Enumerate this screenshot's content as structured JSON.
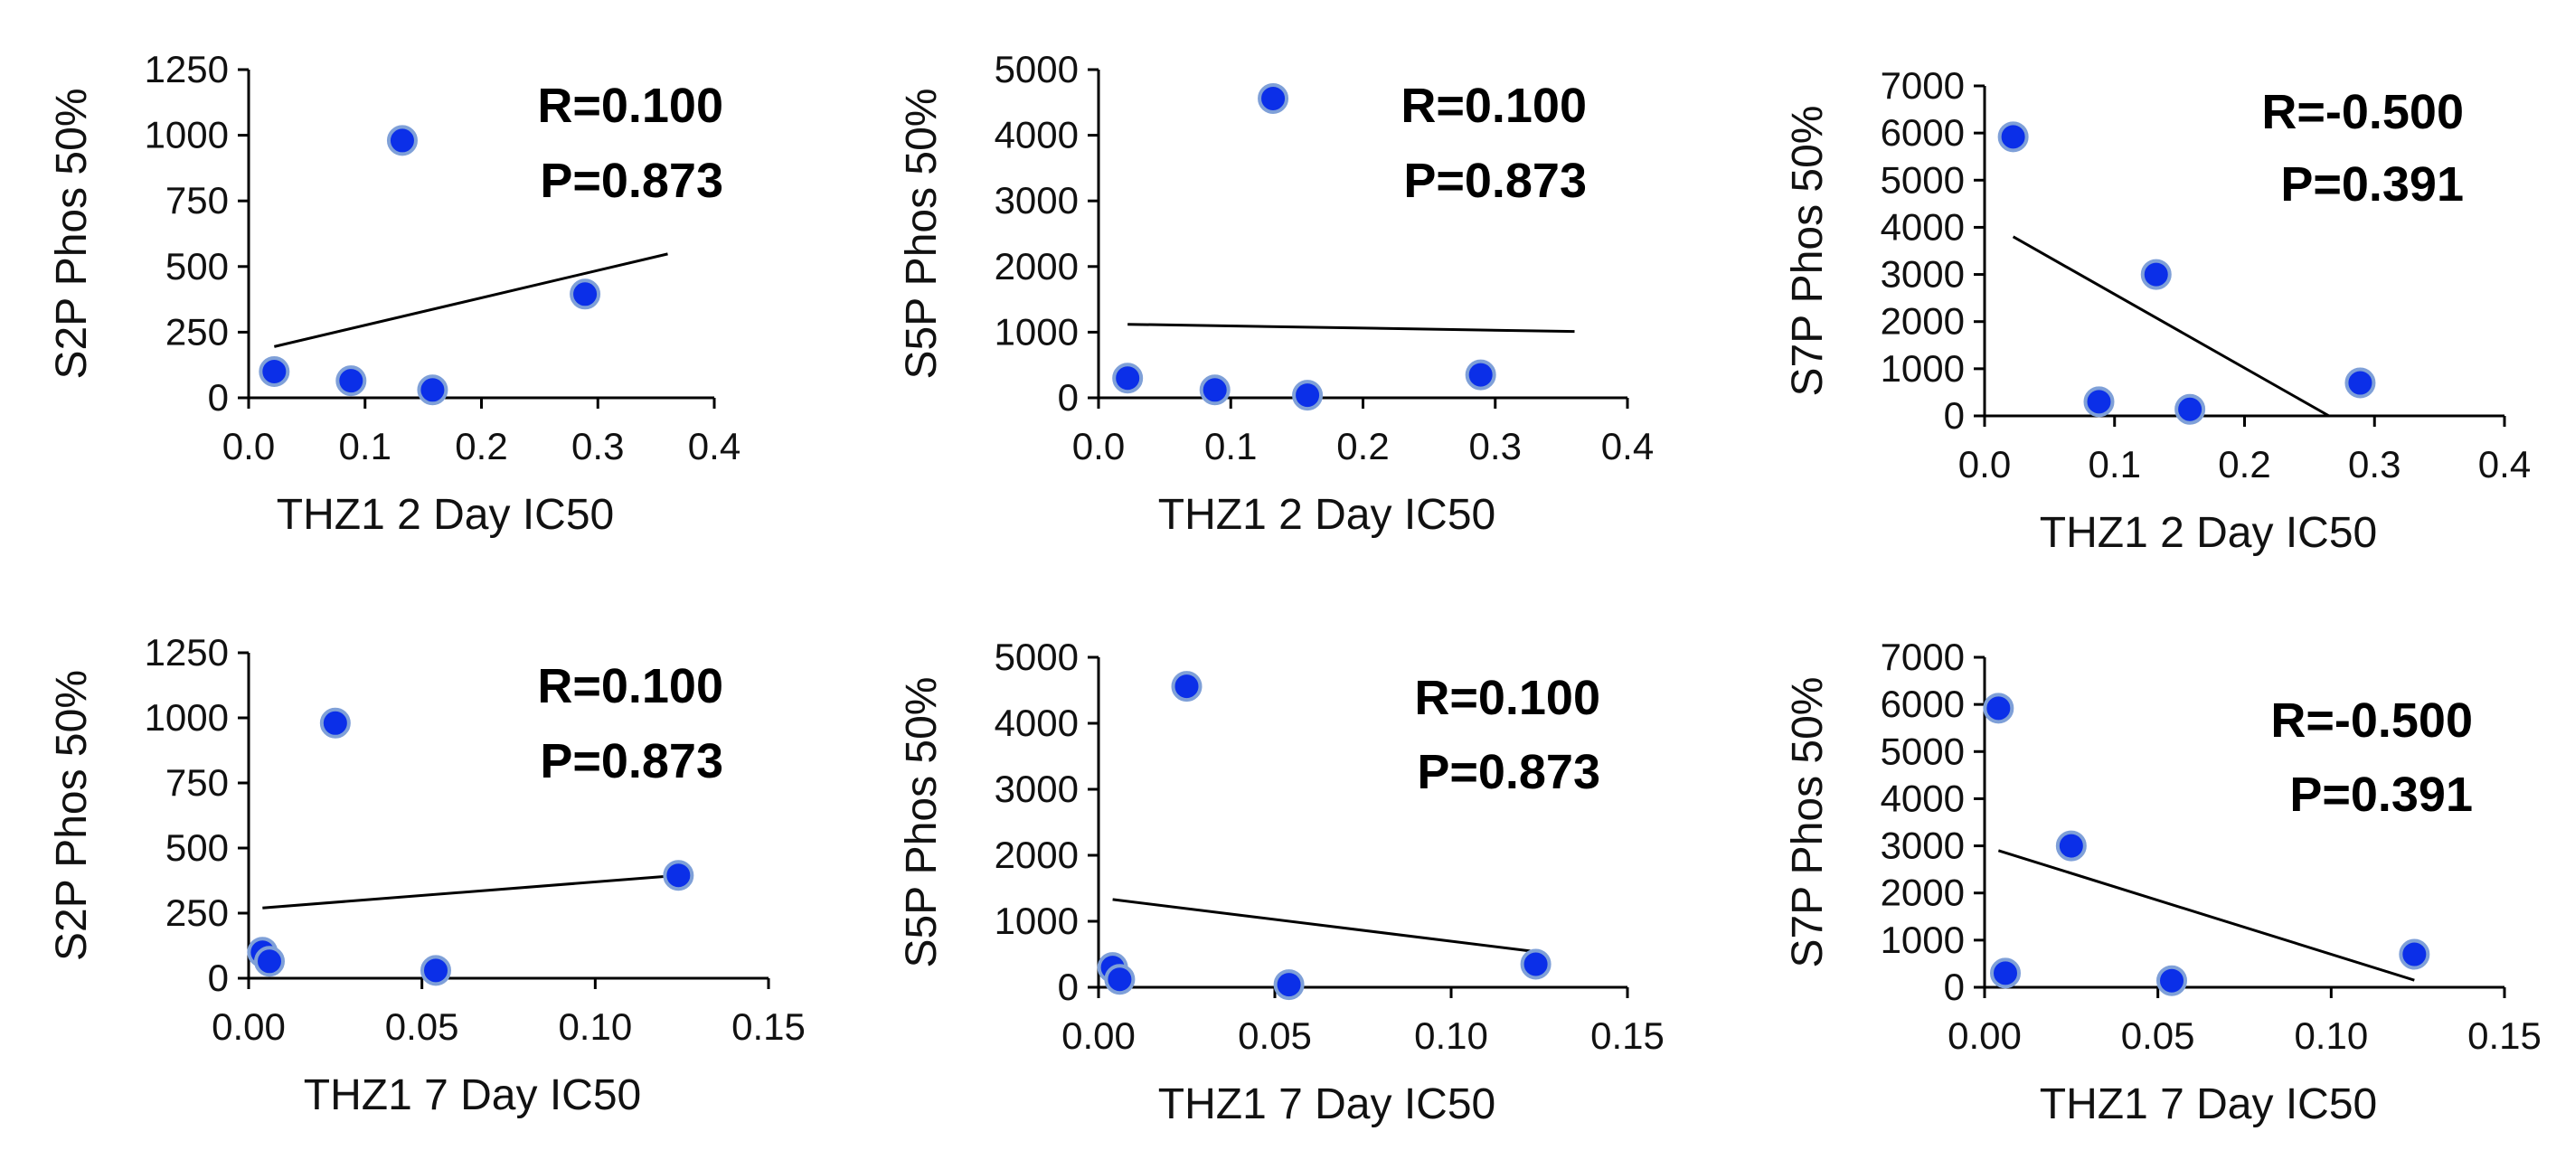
{
  "colors": {
    "point_fill": "#0b2fe8",
    "point_stroke": "#7fa0d8",
    "trend_line": "#000000",
    "axis": "#000000",
    "text": "#111111"
  },
  "chart_data": [
    {
      "type": "scatter",
      "title": "",
      "xlabel": "THZ1 2 Day IC50",
      "ylabel": "S2P Phos 50%",
      "xlim": [
        0,
        0.4
      ],
      "ylim": [
        0,
        1250
      ],
      "xticks": [
        0,
        0.1,
        0.2,
        0.3,
        0.4
      ],
      "yticks": [
        0,
        250,
        500,
        750,
        1000,
        1250
      ],
      "xtick_labels": [
        "0.0",
        "0.1",
        "0.2",
        "0.3",
        "0.4"
      ],
      "ytick_labels": [
        "0",
        "250",
        "500",
        "750",
        "1000",
        "1250"
      ],
      "points": [
        {
          "x": 0.022,
          "y": 100
        },
        {
          "x": 0.088,
          "y": 65
        },
        {
          "x": 0.132,
          "y": 980
        },
        {
          "x": 0.158,
          "y": 30
        },
        {
          "x": 0.289,
          "y": 395
        }
      ],
      "trendline": {
        "x": [
          0.022,
          0.36
        ],
        "y": [
          195,
          548
        ]
      },
      "stats": {
        "r": "R=0.100",
        "p": "P=0.873"
      },
      "legend": "none",
      "grid": false
    },
    {
      "type": "scatter",
      "title": "",
      "xlabel": "THZ1 2 Day IC50",
      "ylabel": "S5P Phos 50%",
      "xlim": [
        0,
        0.4
      ],
      "ylim": [
        0,
        5000
      ],
      "xticks": [
        0,
        0.1,
        0.2,
        0.3,
        0.4
      ],
      "yticks": [
        0,
        1000,
        2000,
        3000,
        4000,
        5000
      ],
      "xtick_labels": [
        "0.0",
        "0.1",
        "0.2",
        "0.3",
        "0.4"
      ],
      "ytick_labels": [
        "0",
        "1000",
        "2000",
        "3000",
        "4000",
        "5000"
      ],
      "points": [
        {
          "x": 0.022,
          "y": 300
        },
        {
          "x": 0.088,
          "y": 120
        },
        {
          "x": 0.132,
          "y": 4560
        },
        {
          "x": 0.158,
          "y": 40
        },
        {
          "x": 0.289,
          "y": 350
        }
      ],
      "trendline": {
        "x": [
          0.022,
          0.36
        ],
        "y": [
          1120,
          1010
        ]
      },
      "stats": {
        "r": "R=0.100",
        "p": "P=0.873"
      },
      "legend": "none",
      "grid": false
    },
    {
      "type": "scatter",
      "title": "",
      "xlabel": "THZ1 2 Day IC50",
      "ylabel": "S7P Phos 50%",
      "xlim": [
        0,
        0.4
      ],
      "ylim": [
        0,
        7000
      ],
      "xticks": [
        0,
        0.1,
        0.2,
        0.3,
        0.4
      ],
      "yticks": [
        0,
        1000,
        2000,
        3000,
        4000,
        5000,
        6000,
        7000
      ],
      "xtick_labels": [
        "0.0",
        "0.1",
        "0.2",
        "0.3",
        "0.4"
      ],
      "ytick_labels": [
        "0",
        "1000",
        "2000",
        "3000",
        "4000",
        "5000",
        "6000",
        "7000"
      ],
      "points": [
        {
          "x": 0.022,
          "y": 5920
        },
        {
          "x": 0.088,
          "y": 300
        },
        {
          "x": 0.132,
          "y": 3000
        },
        {
          "x": 0.158,
          "y": 140
        },
        {
          "x": 0.289,
          "y": 700
        }
      ],
      "trendline": {
        "x": [
          0.022,
          0.265
        ],
        "y": [
          3800,
          0
        ]
      },
      "stats": {
        "r": "R=-0.500",
        "p": "P=0.391"
      },
      "legend": "none",
      "grid": false
    },
    {
      "type": "scatter",
      "title": "",
      "xlabel": "THZ1 7 Day IC50",
      "ylabel": "S2P Phos 50%",
      "xlim": [
        0,
        0.15
      ],
      "ylim": [
        0,
        1250
      ],
      "xticks": [
        0,
        0.05,
        0.1,
        0.15
      ],
      "yticks": [
        0,
        250,
        500,
        750,
        1000,
        1250
      ],
      "xtick_labels": [
        "0.00",
        "0.05",
        "0.10",
        "0.15"
      ],
      "ytick_labels": [
        "0",
        "250",
        "500",
        "750",
        "1000",
        "1250"
      ],
      "points": [
        {
          "x": 0.004,
          "y": 100
        },
        {
          "x": 0.006,
          "y": 65
        },
        {
          "x": 0.025,
          "y": 980
        },
        {
          "x": 0.054,
          "y": 30
        },
        {
          "x": 0.124,
          "y": 395
        }
      ],
      "trendline": {
        "x": [
          0.004,
          0.124
        ],
        "y": [
          270,
          395
        ]
      },
      "stats": {
        "r": "R=0.100",
        "p": "P=0.873"
      },
      "legend": "none",
      "grid": false
    },
    {
      "type": "scatter",
      "title": "",
      "xlabel": "THZ1 7 Day IC50",
      "ylabel": "S5P Phos 50%",
      "xlim": [
        0,
        0.15
      ],
      "ylim": [
        0,
        5000
      ],
      "xticks": [
        0,
        0.05,
        0.1,
        0.15
      ],
      "yticks": [
        0,
        1000,
        2000,
        3000,
        4000,
        5000
      ],
      "xtick_labels": [
        "0.00",
        "0.05",
        "0.10",
        "0.15"
      ],
      "ytick_labels": [
        "0",
        "1000",
        "2000",
        "3000",
        "4000",
        "5000"
      ],
      "points": [
        {
          "x": 0.004,
          "y": 300
        },
        {
          "x": 0.006,
          "y": 120
        },
        {
          "x": 0.025,
          "y": 4560
        },
        {
          "x": 0.054,
          "y": 40
        },
        {
          "x": 0.124,
          "y": 350
        }
      ],
      "trendline": {
        "x": [
          0.004,
          0.124
        ],
        "y": [
          1330,
          540
        ]
      },
      "stats": {
        "r": "R=0.100",
        "p": "P=0.873"
      },
      "legend": "none",
      "grid": false
    },
    {
      "type": "scatter",
      "title": "",
      "xlabel": "THZ1 7 Day IC50",
      "ylabel": "S7P Phos 50%",
      "xlim": [
        0,
        0.15
      ],
      "ylim": [
        0,
        7000
      ],
      "xticks": [
        0,
        0.05,
        0.1,
        0.15
      ],
      "yticks": [
        0,
        1000,
        2000,
        3000,
        4000,
        5000,
        6000,
        7000
      ],
      "xtick_labels": [
        "0.00",
        "0.05",
        "0.10",
        "0.15"
      ],
      "ytick_labels": [
        "0",
        "1000",
        "2000",
        "3000",
        "4000",
        "5000",
        "6000",
        "7000"
      ],
      "points": [
        {
          "x": 0.004,
          "y": 5920
        },
        {
          "x": 0.006,
          "y": 300
        },
        {
          "x": 0.025,
          "y": 3000
        },
        {
          "x": 0.054,
          "y": 140
        },
        {
          "x": 0.124,
          "y": 700
        }
      ],
      "trendline": {
        "x": [
          0.004,
          0.124
        ],
        "y": [
          2900,
          150
        ]
      },
      "stats": {
        "r": "R=-0.500",
        "p": "P=0.391"
      },
      "legend": "none",
      "grid": false
    }
  ]
}
